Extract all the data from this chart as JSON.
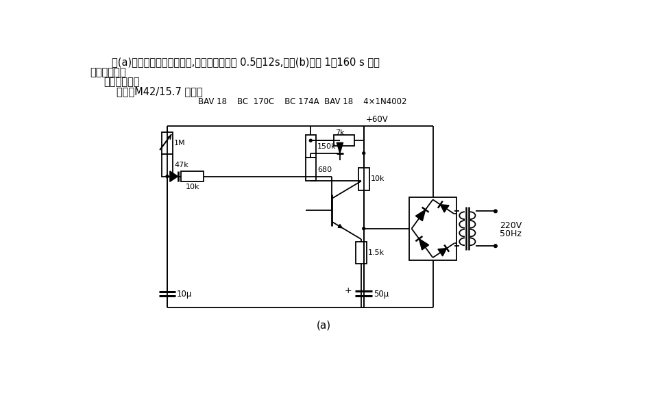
{
  "title1": "图(a)电路中有两级电路结构,其定时时间约为 0.5～12s,而图(b)可有 1～160 s 范围",
  "title2": "的定时时间。",
  "title3": "    变压器参数：",
  "title4": "        铁芯：M42/15.7 硅钢片",
  "comp_labels": "BAV 18    BC  170C    BC 174A  BAV 18    4×1N4002",
  "caption": "(a)",
  "bg_color": "#ffffff",
  "lc": "#000000"
}
